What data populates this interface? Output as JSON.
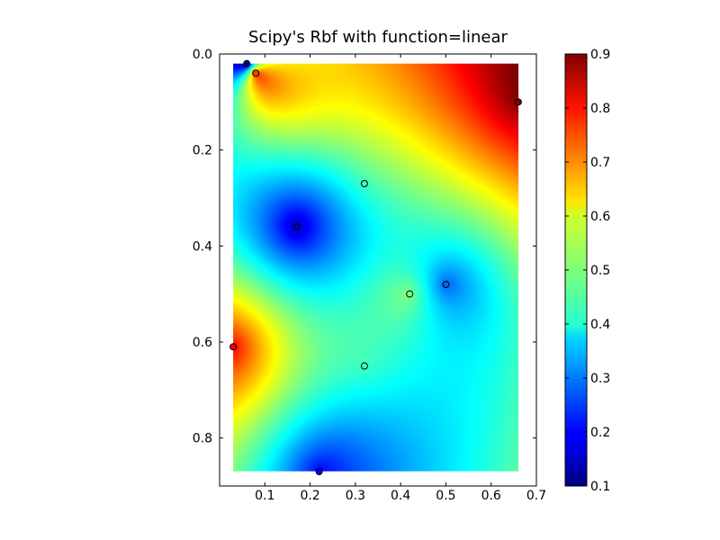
{
  "chart_data": {
    "type": "heatmap",
    "title": "Scipy's Rbf with function=linear",
    "xlabel": "",
    "ylabel": "",
    "xlim": [
      0.0,
      0.7
    ],
    "ylim": [
      0.9,
      0.0
    ],
    "y_inverted": true,
    "xticks": [
      "0.1",
      "0.2",
      "0.3",
      "0.4",
      "0.5",
      "0.6",
      "0.7"
    ],
    "yticks": [
      "0.0",
      "0.2",
      "0.4",
      "0.6",
      "0.8"
    ],
    "colormap": "jet",
    "color_range": [
      0.1,
      0.9
    ],
    "colorbar_ticks": [
      "0.1",
      "0.2",
      "0.3",
      "0.4",
      "0.5",
      "0.6",
      "0.7",
      "0.8",
      "0.9"
    ],
    "grid": false,
    "interpolated_extent": {
      "x": [
        0.03,
        0.66
      ],
      "y": [
        0.02,
        0.87
      ]
    },
    "points": [
      {
        "x": 0.06,
        "y": 0.02,
        "value": 0.1
      },
      {
        "x": 0.08,
        "y": 0.04,
        "value": 0.75
      },
      {
        "x": 0.66,
        "y": 0.1,
        "value": 0.9
      },
      {
        "x": 0.32,
        "y": 0.27,
        "value": 0.45
      },
      {
        "x": 0.17,
        "y": 0.36,
        "value": 0.15
      },
      {
        "x": 0.5,
        "y": 0.48,
        "value": 0.28
      },
      {
        "x": 0.42,
        "y": 0.5,
        "value": 0.5
      },
      {
        "x": 0.03,
        "y": 0.61,
        "value": 0.8
      },
      {
        "x": 0.32,
        "y": 0.65,
        "value": 0.45
      },
      {
        "x": 0.22,
        "y": 0.87,
        "value": 0.2
      }
    ]
  }
}
